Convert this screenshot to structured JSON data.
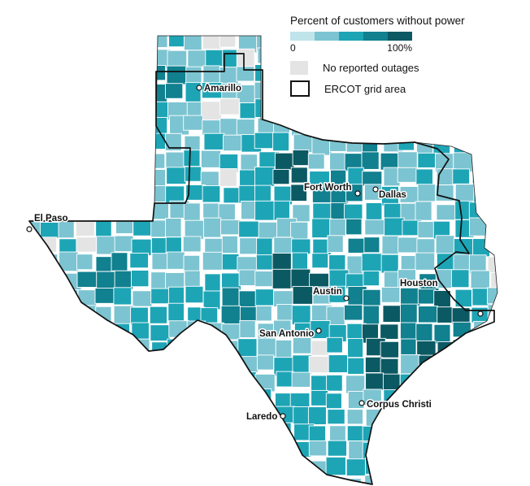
{
  "legend": {
    "title": "Percent of customers without power",
    "ramp_colors": [
      "#bfe4ea",
      "#7cc4d1",
      "#1da5b6",
      "#11808f",
      "#0b5963"
    ],
    "min_label": "0",
    "max_label": "100%",
    "no_outage_label": "No reported outages",
    "no_outage_color": "#e4e4e4",
    "ercot_label": "ERCOT grid area"
  },
  "cities": [
    {
      "name": "Amarillo",
      "id": "amarillo"
    },
    {
      "name": "El Paso",
      "id": "el-paso"
    },
    {
      "name": "Fort Worth",
      "id": "fort-worth"
    },
    {
      "name": "Dallas",
      "id": "dallas"
    },
    {
      "name": "Austin",
      "id": "austin"
    },
    {
      "name": "San Antonio",
      "id": "san-antonio"
    },
    {
      "name": "Houston",
      "id": "houston"
    },
    {
      "name": "Corpus Christi",
      "id": "corpus-christi"
    },
    {
      "name": "Laredo",
      "id": "laredo"
    }
  ]
}
